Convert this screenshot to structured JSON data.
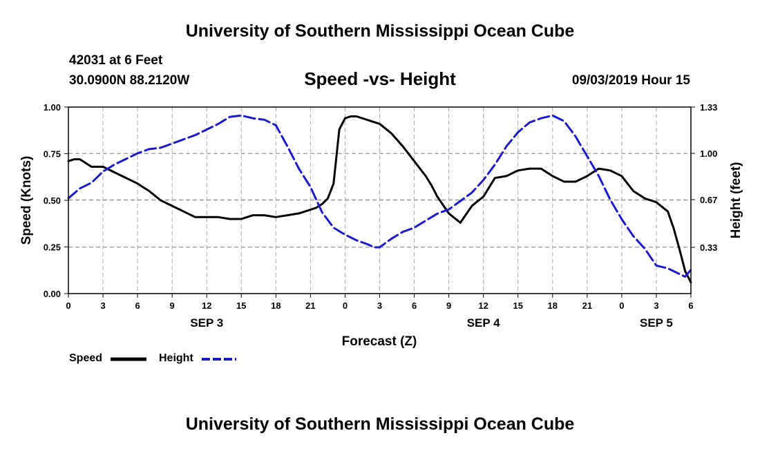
{
  "header": {
    "title": "University of Southern Mississippi Ocean Cube",
    "station": "42031 at 6 Feet",
    "coords": "30.0900N 88.2120W",
    "subtitle": "Speed -vs- Height",
    "datetime": "09/03/2019 Hour 15"
  },
  "footer": {
    "title": "University of Southern Mississippi Ocean Cube"
  },
  "legend": {
    "speed": "Speed",
    "height": "Height"
  },
  "colors": {
    "speed": "#000000",
    "height": "#1a1acc",
    "grid": "#a8a8a8"
  },
  "chart_data": {
    "type": "line",
    "title": "Speed -vs- Height",
    "xlabel": "Forecast (Z)",
    "ylabel": "Speed (Knots)",
    "y2label": "Height (feet)",
    "x_range": [
      0,
      54
    ],
    "x_ticks": [
      0,
      3,
      6,
      9,
      12,
      15,
      18,
      21,
      24,
      27,
      30,
      33,
      36,
      39,
      42,
      45,
      48,
      51,
      54
    ],
    "x_tick_labels": [
      "0",
      "3",
      "6",
      "9",
      "12",
      "15",
      "18",
      "21",
      "0",
      "3",
      "6",
      "9",
      "12",
      "15",
      "18",
      "21",
      "0",
      "3",
      "6"
    ],
    "day_labels": [
      {
        "x": 12,
        "label": "SEP 3"
      },
      {
        "x": 36,
        "label": "SEP 4"
      },
      {
        "x": 51,
        "label": "SEP 5"
      }
    ],
    "ylim": [
      0,
      1.0
    ],
    "y_ticks": [
      0,
      0.25,
      0.5,
      0.75,
      1.0
    ],
    "y_tick_labels": [
      "0.00",
      "0.25",
      "0.50",
      "0.75",
      "1.00"
    ],
    "y2lim": [
      0,
      1.33
    ],
    "y2_ticks": [
      0.33,
      0.67,
      1.0,
      1.33
    ],
    "y2_tick_labels": [
      "0.33",
      "0.67",
      "1.00",
      "1.33"
    ],
    "grid": true,
    "series": [
      {
        "name": "Speed",
        "axis": "left",
        "style": "solid",
        "x": [
          0,
          0.5,
          1,
          1.5,
          2,
          3,
          4,
          5,
          6,
          7,
          8,
          9,
          10,
          11,
          12,
          13,
          14,
          15,
          16,
          17,
          18,
          19,
          20,
          21,
          21.5,
          22,
          22.5,
          23,
          23.5,
          24,
          24.5,
          25,
          26,
          27,
          28,
          29,
          30,
          31,
          31.5,
          32,
          33,
          34,
          35,
          36,
          37,
          38,
          39,
          40,
          41,
          42,
          43,
          44,
          45,
          46,
          47,
          48,
          48.5,
          49,
          50,
          51,
          52,
          52.5,
          53,
          53.5,
          54
        ],
        "values": [
          0.71,
          0.72,
          0.72,
          0.7,
          0.68,
          0.68,
          0.65,
          0.62,
          0.59,
          0.55,
          0.5,
          0.47,
          0.44,
          0.41,
          0.41,
          0.41,
          0.4,
          0.4,
          0.42,
          0.42,
          0.41,
          0.42,
          0.43,
          0.45,
          0.46,
          0.48,
          0.51,
          0.59,
          0.88,
          0.94,
          0.95,
          0.95,
          0.93,
          0.91,
          0.86,
          0.79,
          0.71,
          0.63,
          0.58,
          0.52,
          0.43,
          0.38,
          0.47,
          0.52,
          0.62,
          0.63,
          0.66,
          0.67,
          0.67,
          0.63,
          0.6,
          0.6,
          0.63,
          0.67,
          0.66,
          0.63,
          0.59,
          0.55,
          0.51,
          0.49,
          0.44,
          0.35,
          0.24,
          0.12,
          0.06
        ]
      },
      {
        "name": "Height",
        "axis": "right",
        "style": "dashed",
        "x": [
          0,
          1,
          2,
          3,
          4,
          5,
          6,
          7,
          8,
          9,
          10,
          11,
          12,
          13,
          14,
          15,
          16,
          17,
          18,
          19,
          20,
          21,
          22,
          23,
          24,
          25,
          26,
          26.5,
          27,
          28,
          29,
          30,
          31,
          32,
          33,
          34,
          35,
          36,
          37,
          38,
          39,
          40,
          41,
          42,
          43,
          44,
          45,
          46,
          47,
          48,
          49,
          50,
          51,
          52,
          53,
          53.5,
          54
        ],
        "values": [
          0.68,
          0.75,
          0.79,
          0.87,
          0.92,
          0.96,
          1.0,
          1.03,
          1.04,
          1.07,
          1.1,
          1.13,
          1.17,
          1.21,
          1.26,
          1.27,
          1.25,
          1.24,
          1.2,
          1.05,
          0.89,
          0.76,
          0.58,
          0.47,
          0.42,
          0.38,
          0.35,
          0.33,
          0.33,
          0.39,
          0.44,
          0.47,
          0.52,
          0.57,
          0.6,
          0.66,
          0.72,
          0.81,
          0.92,
          1.05,
          1.15,
          1.22,
          1.25,
          1.27,
          1.23,
          1.12,
          0.98,
          0.84,
          0.67,
          0.53,
          0.41,
          0.32,
          0.2,
          0.18,
          0.14,
          0.12,
          0.17
        ]
      }
    ]
  }
}
